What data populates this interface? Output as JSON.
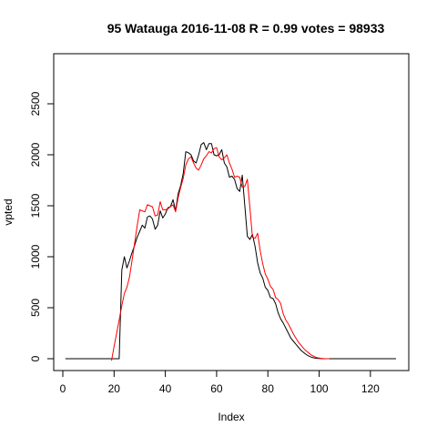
{
  "chart_data": {
    "type": "line",
    "title": "95 Watauga 2016-11-08 R = 0.99 votes = 98933",
    "xlabel": "Index",
    "ylabel": "vpted",
    "xlim": [
      0,
      130
    ],
    "ylim": [
      0,
      2700
    ],
    "xticks": [
      0,
      20,
      40,
      60,
      80,
      100,
      120
    ],
    "yticks": [
      0,
      500,
      1000,
      1500,
      2000,
      2500
    ],
    "series": [
      {
        "color": "#000000",
        "x": [
          1,
          2,
          3,
          4,
          5,
          6,
          7,
          8,
          9,
          10,
          11,
          12,
          13,
          14,
          15,
          16,
          17,
          18,
          19,
          20,
          21,
          22,
          23,
          24,
          25,
          26,
          27,
          28,
          29,
          30,
          31,
          32,
          33,
          34,
          35,
          36,
          37,
          38,
          39,
          40,
          41,
          42,
          43,
          44,
          45,
          46,
          47,
          48,
          49,
          50,
          51,
          52,
          53,
          54,
          55,
          56,
          57,
          58,
          59,
          60,
          61,
          62,
          63,
          64,
          65,
          66,
          67,
          68,
          69,
          70,
          71,
          72,
          73,
          74,
          75,
          76,
          77,
          78,
          79,
          80,
          81,
          82,
          83,
          84,
          85,
          86,
          87,
          88,
          89,
          90,
          91,
          92,
          93,
          94,
          95,
          96,
          97,
          98,
          99,
          100,
          101,
          102,
          103,
          104,
          105,
          106,
          107,
          108,
          109,
          110,
          111,
          112,
          113,
          114,
          115,
          116,
          117,
          118,
          119,
          120,
          121,
          122,
          123,
          124,
          125,
          126,
          127,
          128,
          129,
          130
        ],
        "values": [
          0,
          0,
          0,
          0,
          0,
          0,
          0,
          0,
          0,
          0,
          0,
          0,
          0,
          0,
          0,
          0,
          0,
          0,
          0,
          0,
          0,
          0,
          870,
          1000,
          890,
          960,
          1040,
          1110,
          1190,
          1250,
          1310,
          1280,
          1390,
          1400,
          1370,
          1270,
          1310,
          1450,
          1380,
          1420,
          1480,
          1490,
          1560,
          1450,
          1620,
          1700,
          1820,
          2030,
          2020,
          2000,
          1940,
          1920,
          2000,
          2100,
          2120,
          2050,
          2110,
          2110,
          2000,
          1990,
          2000,
          2050,
          1920,
          1880,
          1780,
          1790,
          1760,
          1670,
          1640,
          1800,
          1500,
          1200,
          1170,
          1220,
          1100,
          940,
          840,
          790,
          700,
          670,
          600,
          590,
          540,
          450,
          390,
          350,
          300,
          250,
          200,
          170,
          140,
          110,
          80,
          60,
          40,
          25,
          15,
          8,
          4,
          2,
          1,
          0,
          0,
          0,
          0,
          0,
          0,
          0,
          0,
          0,
          0,
          0,
          0,
          0,
          0,
          0,
          0,
          0,
          0,
          0,
          0,
          0,
          0,
          0,
          0,
          0,
          0,
          0,
          0,
          0
        ]
      },
      {
        "color": "#ff0000",
        "x": [
          19,
          20,
          21,
          22,
          23,
          24,
          25,
          26,
          27,
          28,
          29,
          30,
          31,
          32,
          33,
          34,
          35,
          36,
          37,
          38,
          39,
          40,
          41,
          42,
          43,
          44,
          45,
          46,
          47,
          48,
          49,
          50,
          51,
          52,
          53,
          54,
          55,
          56,
          57,
          58,
          59,
          60,
          61,
          62,
          63,
          64,
          65,
          66,
          67,
          68,
          69,
          70,
          71,
          72,
          73,
          74,
          75,
          76,
          77,
          78,
          79,
          80,
          81,
          82,
          83,
          84,
          85,
          86,
          87,
          88,
          89,
          90,
          91,
          92,
          93,
          94,
          95,
          96,
          97,
          98,
          99,
          100,
          101,
          102,
          103,
          104
        ],
        "values": [
          -20,
          120,
          250,
          380,
          520,
          640,
          700,
          800,
          960,
          1130,
          1300,
          1460,
          1450,
          1440,
          1510,
          1500,
          1490,
          1400,
          1410,
          1540,
          1460,
          1460,
          1470,
          1490,
          1510,
          1440,
          1580,
          1680,
          1770,
          1900,
          1960,
          1980,
          1920,
          1870,
          1850,
          1900,
          1960,
          1990,
          2030,
          2020,
          2060,
          2070,
          1980,
          1950,
          1970,
          2000,
          1920,
          1860,
          1780,
          1790,
          1780,
          1680,
          1690,
          1760,
          1480,
          1190,
          1180,
          1230,
          1060,
          930,
          830,
          780,
          710,
          680,
          600,
          580,
          540,
          440,
          380,
          340,
          290,
          240,
          200,
          160,
          130,
          100,
          75,
          55,
          35,
          22,
          12,
          6,
          3,
          1,
          0,
          0
        ]
      }
    ],
    "grid": false,
    "legend": "none"
  }
}
